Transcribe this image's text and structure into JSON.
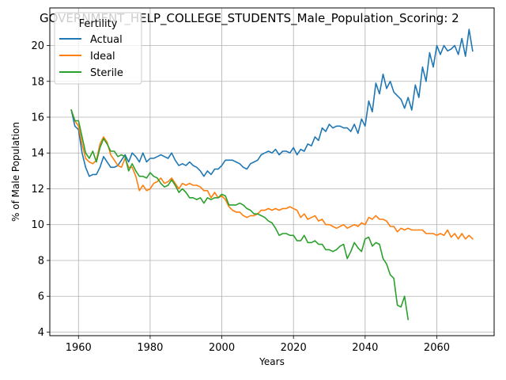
{
  "chart_data": {
    "type": "line",
    "title": "GOVERNMENT_HELP_COLLEGE_STUDENTS_Male_Population_Scoring: 2",
    "xlabel": "Years",
    "ylabel": "% of Male Population",
    "xlim": [
      1952,
      2076
    ],
    "ylim": [
      3.8,
      22.1
    ],
    "xticks": [
      1960,
      1980,
      2000,
      2020,
      2040,
      2060
    ],
    "yticks": [
      4,
      6,
      8,
      10,
      12,
      14,
      16,
      18,
      20
    ],
    "grid": true,
    "legend": {
      "title": "Fertility",
      "placement": "top-left"
    },
    "series": [
      {
        "name": "Actual",
        "color": "#1f77b4",
        "x": [
          1958,
          1959,
          1960,
          1961,
          1962,
          1963,
          1964,
          1965,
          1966,
          1967,
          1968,
          1969,
          1970,
          1971,
          1972,
          1973,
          1974,
          1975,
          1976,
          1977,
          1978,
          1979,
          1980,
          1981,
          1982,
          1983,
          1984,
          1985,
          1986,
          1987,
          1988,
          1989,
          1990,
          1991,
          1992,
          1993,
          1994,
          1995,
          1996,
          1997,
          1998,
          1999,
          2000,
          2001,
          2002,
          2003,
          2004,
          2005,
          2006,
          2007,
          2008,
          2009,
          2010,
          2011,
          2012,
          2013,
          2014,
          2015,
          2016,
          2017,
          2018,
          2019,
          2020,
          2021,
          2022,
          2023,
          2024,
          2025,
          2026,
          2027,
          2028,
          2029,
          2030,
          2031,
          2032,
          2033,
          2034,
          2035,
          2036,
          2037,
          2038,
          2039,
          2040,
          2041,
          2042,
          2043,
          2044,
          2045,
          2046,
          2047,
          2048,
          2049,
          2050,
          2051,
          2052,
          2053,
          2054,
          2055,
          2056,
          2057,
          2058,
          2059,
          2060,
          2061,
          2062,
          2063,
          2064,
          2065,
          2066,
          2067,
          2068,
          2069,
          2070
        ],
        "values": [
          16.4,
          15.5,
          15.3,
          14.0,
          13.2,
          12.7,
          12.8,
          12.8,
          13.2,
          13.8,
          13.5,
          13.2,
          13.2,
          13.3,
          13.6,
          13.9,
          13.5,
          14.0,
          13.8,
          13.5,
          14.0,
          13.5,
          13.7,
          13.7,
          13.8,
          13.9,
          13.8,
          13.7,
          14.0,
          13.6,
          13.3,
          13.4,
          13.3,
          13.5,
          13.3,
          13.2,
          13.0,
          12.7,
          13.0,
          12.8,
          13.1,
          13.1,
          13.3,
          13.6,
          13.6,
          13.6,
          13.5,
          13.4,
          13.2,
          13.1,
          13.4,
          13.5,
          13.6,
          13.9,
          14.0,
          14.1,
          14.0,
          14.2,
          13.9,
          14.1,
          14.1,
          14.0,
          14.3,
          13.9,
          14.2,
          14.1,
          14.5,
          14.4,
          14.9,
          14.7,
          15.4,
          15.2,
          15.6,
          15.4,
          15.5,
          15.5,
          15.4,
          15.4,
          15.2,
          15.6,
          15.1,
          15.9,
          15.5,
          16.9,
          16.3,
          17.9,
          17.3,
          18.4,
          17.6,
          18.0,
          17.4,
          17.2,
          17.0,
          16.5,
          17.1,
          16.4,
          17.8,
          17.1,
          18.8,
          18.0,
          19.6,
          18.8,
          20.0,
          19.5,
          20.0,
          19.7,
          19.8,
          20.0,
          19.5,
          20.4,
          19.4,
          20.9,
          19.7
        ]
      },
      {
        "name": "Ideal",
        "color": "#ff7f0e",
        "x": [
          1958,
          1959,
          1960,
          1961,
          1962,
          1963,
          1964,
          1965,
          1966,
          1967,
          1968,
          1969,
          1970,
          1971,
          1972,
          1973,
          1974,
          1975,
          1976,
          1977,
          1978,
          1979,
          1980,
          1981,
          1982,
          1983,
          1984,
          1985,
          1986,
          1987,
          1988,
          1989,
          1990,
          1991,
          1992,
          1993,
          1994,
          1995,
          1996,
          1997,
          1998,
          1999,
          2000,
          2001,
          2002,
          2003,
          2004,
          2005,
          2006,
          2007,
          2008,
          2009,
          2010,
          2011,
          2012,
          2013,
          2014,
          2015,
          2016,
          2017,
          2018,
          2019,
          2020,
          2021,
          2022,
          2023,
          2024,
          2025,
          2026,
          2027,
          2028,
          2029,
          2030,
          2031,
          2032,
          2033,
          2034,
          2035,
          2036,
          2037,
          2038,
          2039,
          2040,
          2041,
          2042,
          2043,
          2044,
          2045,
          2046,
          2047,
          2048,
          2049,
          2050,
          2051,
          2052,
          2053,
          2054,
          2055,
          2056,
          2057,
          2058,
          2059,
          2060,
          2061,
          2062,
          2063,
          2064,
          2065,
          2066,
          2067,
          2068,
          2069,
          2070
        ],
        "values": [
          16.4,
          15.8,
          15.5,
          14.5,
          13.7,
          13.5,
          13.4,
          13.6,
          14.5,
          14.9,
          14.6,
          13.9,
          13.6,
          13.3,
          13.2,
          13.7,
          13.2,
          13.2,
          12.7,
          11.9,
          12.2,
          11.9,
          12.0,
          12.3,
          12.4,
          12.6,
          12.3,
          12.4,
          12.6,
          12.3,
          12.0,
          12.3,
          12.2,
          12.3,
          12.2,
          12.2,
          12.1,
          11.9,
          11.9,
          11.5,
          11.8,
          11.5,
          11.6,
          11.4,
          11.0,
          10.8,
          10.7,
          10.7,
          10.5,
          10.4,
          10.5,
          10.5,
          10.6,
          10.8,
          10.8,
          10.9,
          10.8,
          10.9,
          10.8,
          10.9,
          10.9,
          11.0,
          10.9,
          10.8,
          10.4,
          10.6,
          10.3,
          10.4,
          10.5,
          10.2,
          10.3,
          10.0,
          10.0,
          9.9,
          9.8,
          9.9,
          10.0,
          9.8,
          9.9,
          10.0,
          9.9,
          10.1,
          10.0,
          10.4,
          10.3,
          10.5,
          10.3,
          10.3,
          10.2,
          9.9,
          9.9,
          9.6,
          9.8,
          9.7,
          9.8,
          9.7,
          9.7,
          9.7,
          9.7,
          9.5,
          9.5,
          9.5,
          9.4,
          9.5,
          9.4,
          9.7,
          9.3,
          9.5,
          9.2,
          9.5,
          9.2,
          9.4,
          9.2
        ]
      },
      {
        "name": "Sterile",
        "color": "#2ca02c",
        "x": [
          1958,
          1959,
          1960,
          1961,
          1962,
          1963,
          1964,
          1965,
          1966,
          1967,
          1968,
          1969,
          1970,
          1971,
          1972,
          1973,
          1974,
          1975,
          1976,
          1977,
          1978,
          1979,
          1980,
          1981,
          1982,
          1983,
          1984,
          1985,
          1986,
          1987,
          1988,
          1989,
          1990,
          1991,
          1992,
          1993,
          1994,
          1995,
          1996,
          1997,
          1998,
          1999,
          2000,
          2001,
          2002,
          2003,
          2004,
          2005,
          2006,
          2007,
          2008,
          2009,
          2010,
          2011,
          2012,
          2013,
          2014,
          2015,
          2016,
          2017,
          2018,
          2019,
          2020,
          2021,
          2022,
          2023,
          2024,
          2025,
          2026,
          2027,
          2028,
          2029,
          2030,
          2031,
          2032,
          2033,
          2034,
          2035,
          2036,
          2037,
          2038,
          2039,
          2040,
          2041,
          2042,
          2043,
          2044,
          2045,
          2046,
          2047,
          2048,
          2049,
          2050,
          2051,
          2052
        ],
        "values": [
          16.4,
          15.8,
          15.8,
          14.9,
          14.0,
          13.7,
          14.1,
          13.5,
          14.3,
          14.8,
          14.5,
          14.1,
          14.1,
          13.8,
          13.9,
          13.8,
          13.0,
          13.4,
          13.0,
          12.7,
          12.7,
          12.6,
          12.9,
          12.7,
          12.6,
          12.3,
          12.1,
          12.2,
          12.5,
          12.2,
          11.8,
          12.0,
          11.8,
          11.5,
          11.5,
          11.4,
          11.5,
          11.2,
          11.5,
          11.4,
          11.5,
          11.5,
          11.7,
          11.6,
          11.1,
          11.1,
          11.1,
          11.2,
          11.1,
          10.9,
          10.8,
          10.6,
          10.6,
          10.5,
          10.4,
          10.2,
          10.1,
          9.8,
          9.4,
          9.5,
          9.5,
          9.4,
          9.4,
          9.1,
          9.1,
          9.4,
          9.0,
          9.0,
          9.1,
          8.9,
          8.9,
          8.6,
          8.6,
          8.5,
          8.6,
          8.8,
          8.9,
          8.1,
          8.5,
          9.0,
          8.7,
          8.5,
          9.2,
          9.3,
          8.8,
          9.0,
          8.9,
          8.1,
          7.8,
          7.2,
          7.0,
          5.5,
          5.4,
          6.0,
          4.7
        ]
      }
    ]
  }
}
